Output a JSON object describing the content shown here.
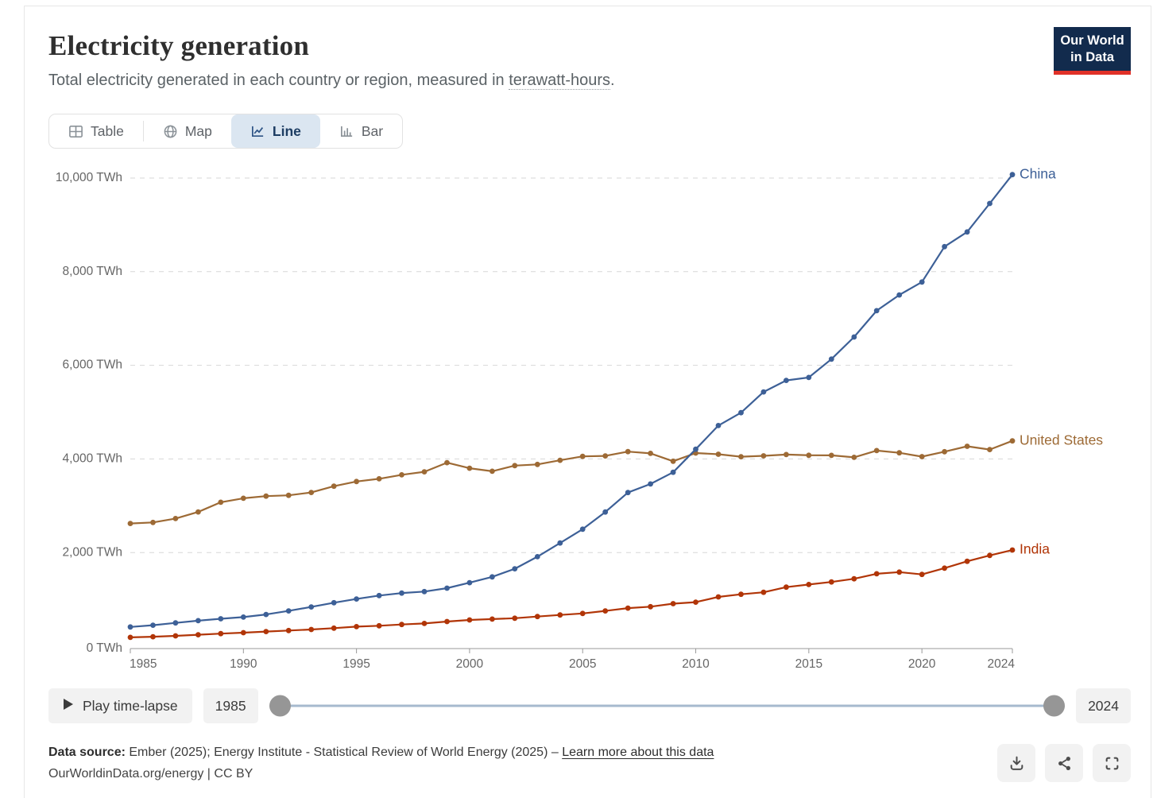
{
  "header": {
    "title": "Electricity generation",
    "subtitle_prefix": "Total electricity generated in each country or region, measured in ",
    "subtitle_link": "terawatt-hours",
    "subtitle_suffix": ".",
    "logo_line1": "Our World",
    "logo_line2": "in Data",
    "logo_bg": "#122b4d",
    "logo_bar": "#e03128"
  },
  "tabs": [
    {
      "label": "Table",
      "icon": "table-icon",
      "active": false
    },
    {
      "label": "Map",
      "icon": "globe-icon",
      "active": false
    },
    {
      "label": "Line",
      "icon": "line-chart-icon",
      "active": true
    },
    {
      "label": "Bar",
      "icon": "bar-chart-icon",
      "active": false
    }
  ],
  "chart_data": {
    "type": "line",
    "title": "Electricity generation",
    "unit": "TWh",
    "ylim": [
      0,
      10000
    ],
    "grid": true,
    "legend_position": "line-end-labels",
    "years": [
      1985,
      1986,
      1987,
      1988,
      1989,
      1990,
      1991,
      1992,
      1993,
      1994,
      1995,
      1996,
      1997,
      1998,
      1999,
      2000,
      2001,
      2002,
      2003,
      2004,
      2005,
      2006,
      2007,
      2008,
      2009,
      2010,
      2011,
      2012,
      2013,
      2014,
      2015,
      2016,
      2017,
      2018,
      2019,
      2020,
      2021,
      2022,
      2023,
      2024
    ],
    "yticks": [
      {
        "value": 0,
        "label": "0 TWh"
      },
      {
        "value": 2000,
        "label": "2,000 TWh"
      },
      {
        "value": 4000,
        "label": "4,000 TWh"
      },
      {
        "value": 6000,
        "label": "6,000 TWh"
      },
      {
        "value": 8000,
        "label": "8,000 TWh"
      },
      {
        "value": 10000,
        "label": "10,000 TWh"
      }
    ],
    "xticks": [
      {
        "year": 1985,
        "label": "1985"
      },
      {
        "year": 1990,
        "label": "1990"
      },
      {
        "year": 1995,
        "label": "1995"
      },
      {
        "year": 2000,
        "label": "2000"
      },
      {
        "year": 2005,
        "label": "2005"
      },
      {
        "year": 2010,
        "label": "2010"
      },
      {
        "year": 2015,
        "label": "2015"
      },
      {
        "year": 2020,
        "label": "2020"
      },
      {
        "year": 2024,
        "label": "2024"
      }
    ],
    "series": [
      {
        "name": "United States",
        "color": "#9d6a35",
        "values": [
          2621,
          2644,
          2727,
          2868,
          3075,
          3160,
          3205,
          3222,
          3283,
          3418,
          3517,
          3576,
          3661,
          3725,
          3920,
          3802,
          3737,
          3858,
          3883,
          3971,
          4055,
          4065,
          4157,
          4119,
          3950,
          4125,
          4100,
          4048,
          4066,
          4094,
          4078,
          4077,
          4034,
          4178,
          4131,
          4050,
          4155,
          4270,
          4200,
          4386
        ]
      },
      {
        "name": "India",
        "color": "#b13507",
        "values": [
          188,
          202,
          221,
          245,
          269,
          289,
          313,
          334,
          356,
          385,
          417,
          436,
          464,
          485,
          527,
          561,
          579,
          597,
          633,
          668,
          699,
          753,
          813,
          843,
          908,
          940,
          1053,
          1108,
          1151,
          1262,
          1317,
          1372,
          1440,
          1547,
          1583,
          1533,
          1668,
          1814,
          1939,
          2055
        ]
      },
      {
        "name": "China",
        "color": "#3d6097",
        "values": [
          411,
          449,
          497,
          545,
          585,
          621,
          678,
          754,
          839,
          928,
          1008,
          1081,
          1134,
          1167,
          1239,
          1356,
          1481,
          1654,
          1911,
          2203,
          2500,
          2866,
          3282,
          3466,
          3715,
          4207,
          4713,
          4988,
          5432,
          5678,
          5740,
          6133,
          6604,
          7166,
          7503,
          7779,
          8534,
          8849,
          9456,
          10073
        ]
      }
    ]
  },
  "timeline": {
    "play_label": "Play time-lapse",
    "play_icon": "play-icon",
    "start_year": "1985",
    "end_year": "2024"
  },
  "footer": {
    "source_label": "Data source:",
    "source_text": " Ember (2025); Energy Institute - Statistical Review of World Energy (2025) – ",
    "link": "Learn more about this data",
    "attribution": "OurWorldinData.org/energy | CC BY"
  },
  "actions": [
    {
      "name": "download-button",
      "icon": "download-icon"
    },
    {
      "name": "share-button",
      "icon": "share-icon"
    },
    {
      "name": "fullscreen-button",
      "icon": "fullscreen-icon"
    }
  ]
}
